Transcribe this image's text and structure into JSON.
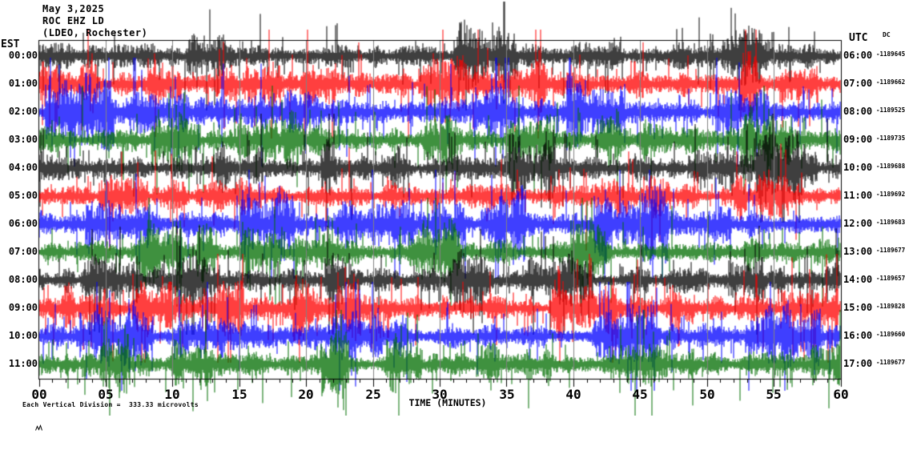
{
  "title": {
    "date": "May 3,2025",
    "station": "ROC EHZ LD",
    "location": "(LDEO, Rochester)"
  },
  "left_axis": {
    "header": "EST"
  },
  "right_axis": {
    "header": "UTC",
    "dc_header": "DC"
  },
  "x_axis": {
    "label": "TIME (MINUTES)",
    "ticks": [
      "00",
      "05",
      "10",
      "15",
      "20",
      "25",
      "30",
      "35",
      "40",
      "45",
      "50",
      "55",
      "60"
    ]
  },
  "footer": {
    "scale_note": "Each Vertical Division =  333.33 microvolts"
  },
  "colors": {
    "black": "#000000",
    "red": "#ff0000",
    "blue": "#0000ff",
    "green": "#006f00",
    "grid": "#808080",
    "frame": "#000000"
  },
  "chart_data": {
    "type": "line",
    "subtype": "helicorder-seismogram",
    "title": "ROC EHZ LD (LDEO, Rochester) — May 3,2025",
    "xlabel": "TIME (MINUTES)",
    "x_range_minutes": [
      0,
      60
    ],
    "minor_tick_minutes": 1,
    "major_tick_minutes": 5,
    "grid": "vertical gray lines every 5 minutes",
    "vertical_division_microvolts": 333.33,
    "row_duration_minutes": 60,
    "description": "12 rows of continuous high-amplitude broadband seismic noise; one hour per row; trace colors cycle black/red/blue/green; individual waveform samples not resolvable from image",
    "rows": [
      {
        "est": "00:00",
        "utc": "06:00",
        "dc": "-1189645",
        "color": "#000000"
      },
      {
        "est": "01:00",
        "utc": "07:00",
        "dc": "-1189662",
        "color": "#ff0000"
      },
      {
        "est": "02:00",
        "utc": "08:00",
        "dc": "-1189525",
        "color": "#0000ff"
      },
      {
        "est": "03:00",
        "utc": "09:00",
        "dc": "-1189735",
        "color": "#006f00"
      },
      {
        "est": "04:00",
        "utc": "10:00",
        "dc": "-1189688",
        "color": "#000000"
      },
      {
        "est": "05:00",
        "utc": "11:00",
        "dc": "-1189692",
        "color": "#ff0000"
      },
      {
        "est": "06:00",
        "utc": "12:00",
        "dc": "-1189683",
        "color": "#0000ff"
      },
      {
        "est": "07:00",
        "utc": "13:00",
        "dc": "-1189677",
        "color": "#006f00"
      },
      {
        "est": "08:00",
        "utc": "14:00",
        "dc": "-1189657",
        "color": "#000000"
      },
      {
        "est": "09:00",
        "utc": "15:00",
        "dc": "-1189828",
        "color": "#ff0000"
      },
      {
        "est": "10:00",
        "utc": "16:00",
        "dc": "-1189660",
        "color": "#0000ff"
      },
      {
        "est": "11:00",
        "utc": "17:00",
        "dc": "-1189677",
        "color": "#006f00"
      }
    ]
  }
}
